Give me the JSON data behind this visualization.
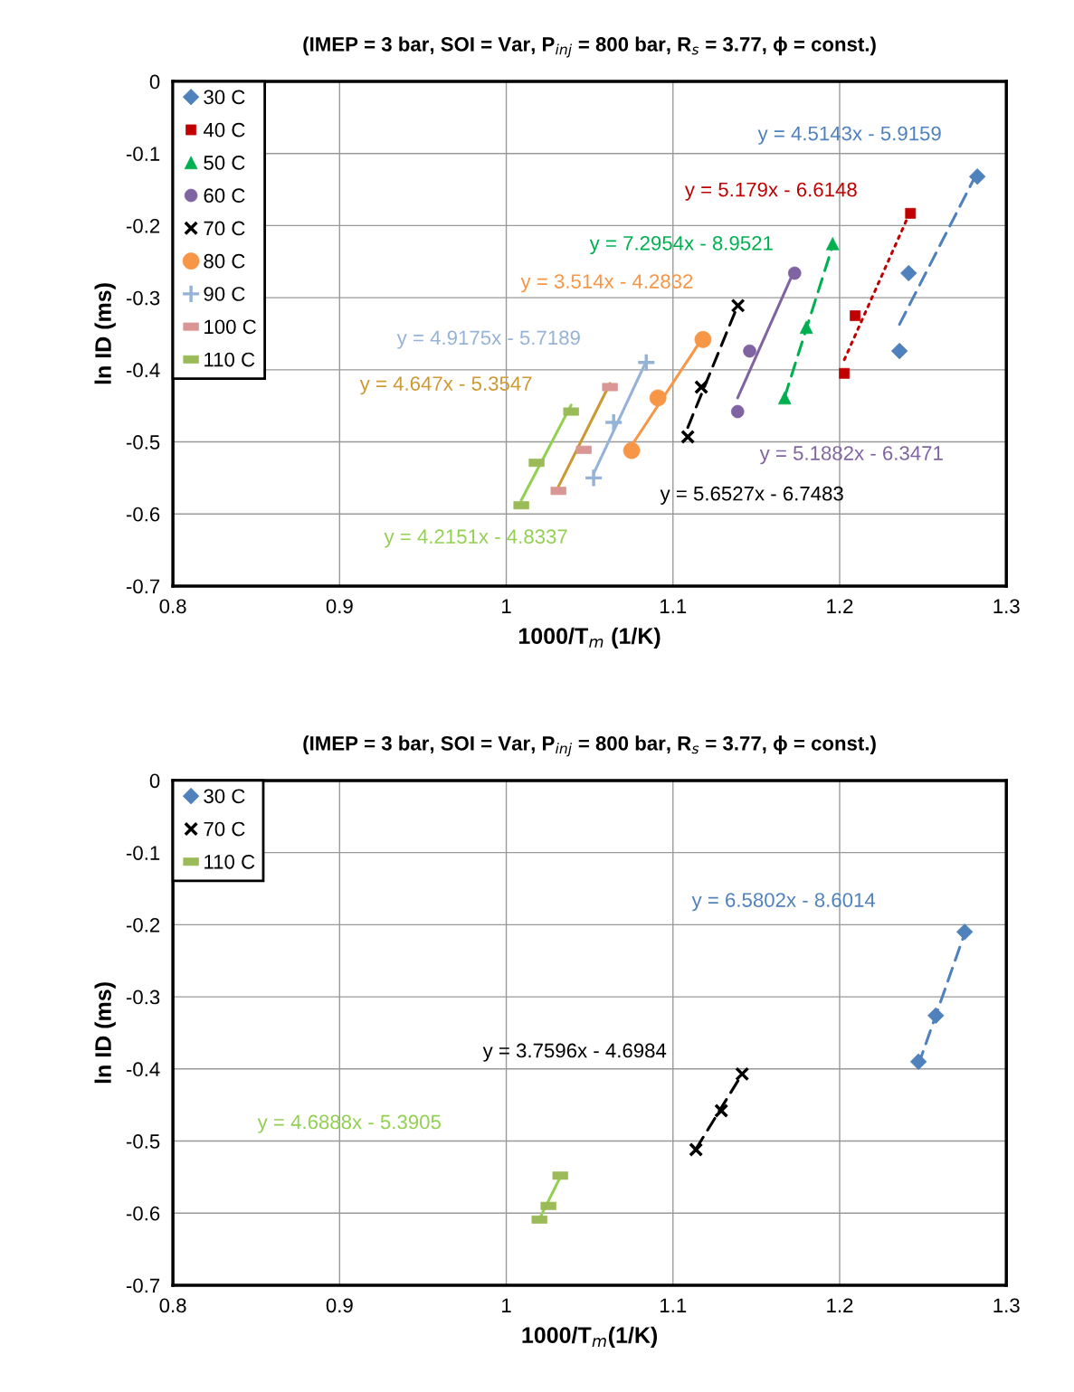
{
  "chart_data": [
    {
      "type": "scatter",
      "title": "(IMEP = 3 bar, SOI = Var, P$_{inj}$ = 800 bar, R$_{s}$ = 3.77, ϕ = const.)",
      "xlabel": "1000/T$_{m}$ (1/K)",
      "ylabel": "ln ID (ms)",
      "xlim": [
        0.8,
        1.3
      ],
      "ylim": [
        -0.7,
        0
      ],
      "xticks": [
        0.8,
        0.9,
        1,
        1.1,
        1.2,
        1.3
      ],
      "yticks": [
        0,
        -0.1,
        -0.2,
        -0.3,
        -0.4,
        -0.5,
        -0.6,
        -0.7
      ],
      "grid": true,
      "legend": "top left",
      "series": [
        {
          "name": "30 C",
          "marker": "diamond",
          "color": "#4f81bd",
          "x": [
            1.2826,
            1.2414,
            1.2359
          ],
          "values": [
            -0.132,
            -0.266,
            -0.374
          ]
        },
        {
          "name": "40 C",
          "marker": "square",
          "color": "#c00000",
          "x": [
            1.2425,
            1.2093,
            1.2028
          ],
          "values": [
            -0.183,
            -0.325,
            -0.405
          ]
        },
        {
          "name": "50 C",
          "marker": "triangle",
          "color": "#00b050",
          "x": [
            1.1958,
            1.18,
            1.167
          ],
          "values": [
            -0.225,
            -0.341,
            -0.439
          ]
        },
        {
          "name": "60 C",
          "marker": "circle",
          "color": "#8064a2",
          "x": [
            1.173,
            1.146,
            1.1388
          ],
          "values": [
            -0.266,
            -0.374,
            -0.458
          ]
        },
        {
          "name": "70 C",
          "marker": "cross",
          "color": "#000000",
          "x": [
            1.139,
            1.117,
            1.1089
          ],
          "values": [
            -0.311,
            -0.424,
            -0.493
          ]
        },
        {
          "name": "80 C",
          "marker": "circle",
          "color": "#f79646",
          "x": [
            1.118,
            1.091,
            1.0752
          ],
          "values": [
            -0.358,
            -0.439,
            -0.512
          ]
        },
        {
          "name": "90 C",
          "marker": "cross",
          "color": "#95b3d7",
          "x": [
            1.084,
            1.0644,
            1.0524
          ],
          "values": [
            -0.39,
            -0.473,
            -0.55
          ]
        },
        {
          "name": "100 C",
          "color": "#d99694",
          "x": [
            1.0622,
            1.0465,
            1.0313
          ],
          "values": [
            -0.424,
            -0.511,
            -0.568
          ]
        },
        {
          "name": "110 C",
          "color": "#9bbb59",
          "x": [
            1.0389,
            1.0182,
            1.009
          ],
          "values": [
            -0.458,
            -0.529,
            -0.588
          ]
        },
        {
          "type": "line",
          "line_style": "dashed",
          "color": "#4f81bd",
          "x": [
            1.2359,
            1.2826
          ],
          "values": [
            -0.337,
            -0.126
          ]
        },
        {
          "type": "line",
          "line_style": "dotted",
          "color": "#c00000",
          "x": [
            1.2028,
            1.2425
          ],
          "values": [
            -0.386,
            -0.18
          ]
        },
        {
          "type": "line",
          "line_style": "dashed",
          "color": "#00b050",
          "x": [
            1.167,
            1.1958
          ],
          "values": [
            -0.438,
            -0.228
          ]
        },
        {
          "type": "line",
          "line_style": "solid",
          "color": "#8064a2",
          "x": [
            1.1388,
            1.173
          ],
          "values": [
            -0.439,
            -0.261
          ]
        },
        {
          "type": "line",
          "line_style": "dashed",
          "color": "#000000",
          "x": [
            1.1089,
            1.139
          ],
          "values": [
            -0.48,
            -0.31
          ]
        },
        {
          "type": "line",
          "line_style": "solid",
          "color": "#f79646",
          "x": [
            1.0752,
            1.118
          ],
          "values": [
            -0.505,
            -0.355
          ]
        },
        {
          "type": "line",
          "line_style": "solid",
          "color": "#95b3d7",
          "x": [
            1.0524,
            1.084
          ],
          "values": [
            -0.544,
            -0.388
          ]
        },
        {
          "type": "line",
          "line_style": "solid",
          "color": "#cc9933",
          "x": [
            1.0313,
            1.0622
          ],
          "values": [
            -0.562,
            -0.419
          ]
        },
        {
          "type": "line",
          "line_style": "solid",
          "color": "#92d050",
          "x": [
            1.009,
            1.0389
          ],
          "values": [
            -0.581,
            -0.449
          ]
        }
      ],
      "annotations": [
        "y = 4.5143x - 5.9159",
        "y = 5.179x - 6.6148",
        "y = 7.2954x - 8.9521",
        "y = 5.1882x - 6.3471",
        "y = 5.6527x - 6.7483",
        "y = 3.514x - 4.2832",
        "y = 4.9175x - 5.7189",
        "y = 4.647x - 5.3547",
        "y = 4.2151x - 4.8337"
      ]
    },
    {
      "type": "scatter",
      "title": "(IMEP = 3 bar, SOI = Var, P$_{inj}$ = 800 bar, R$_{s}$ = 3.77, ϕ = const.)",
      "xlabel": "1000/T$_{m}$(1/K)",
      "ylabel": "ln ID (ms)",
      "xlim": [
        0.8,
        1.3
      ],
      "ylim": [
        -0.7,
        0
      ],
      "xticks": [
        0.8,
        0.9,
        1,
        1.1,
        1.2,
        1.3
      ],
      "yticks": [
        0,
        -0.1,
        -0.2,
        -0.3,
        -0.4,
        -0.5,
        -0.6,
        -0.7
      ],
      "grid": true,
      "legend": "top left",
      "series": [
        {
          "name": "30 C",
          "marker": "diamond",
          "color": "#4f81bd",
          "x": [
            1.275,
            1.2577,
            1.2473
          ],
          "values": [
            -0.21,
            -0.326,
            -0.39
          ]
        },
        {
          "name": "70 C",
          "marker": "cross",
          "color": "#000000",
          "x": [
            1.1415,
            1.129,
            1.1138
          ],
          "values": [
            -0.407,
            -0.458,
            -0.512
          ]
        },
        {
          "name": "110 C",
          "color": "#9bbb59",
          "x": [
            1.0324,
            1.0253,
            1.0199
          ],
          "values": [
            -0.548,
            -0.59,
            -0.609
          ]
        },
        {
          "type": "line",
          "line_style": "dashed",
          "color": "#4f81bd",
          "x": [
            1.2473,
            1.275
          ],
          "values": [
            -0.394,
            -0.212
          ]
        },
        {
          "type": "line",
          "line_style": "dashed",
          "color": "#000000",
          "x": [
            1.1138,
            1.1415
          ],
          "values": [
            -0.511,
            -0.407
          ]
        },
        {
          "type": "line",
          "line_style": "solid",
          "color": "#92d050",
          "x": [
            1.0199,
            1.0324
          ],
          "values": [
            -0.608,
            -0.55
          ]
        }
      ],
      "annotations": [
        "y = 6.5802x - 8.6014",
        "y = 3.7596x - 4.6984",
        "y = 4.6888x - 5.3905"
      ]
    }
  ]
}
